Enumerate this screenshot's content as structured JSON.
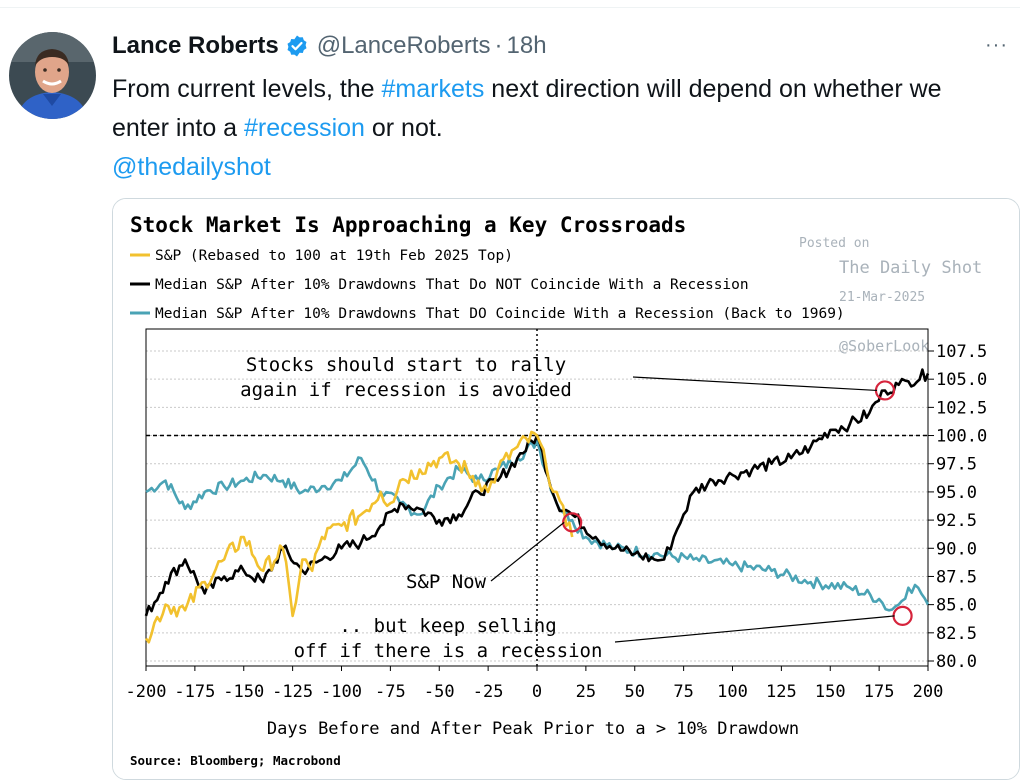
{
  "tweet": {
    "author_name": "Lance Roberts",
    "handle": "@LanceRoberts",
    "separator": "·",
    "time": "18h",
    "more_label": "···",
    "text_part1": "From current levels, the ",
    "hashtag_markets": "#markets",
    "text_part2": " next direction will depend on whether we enter into a ",
    "hashtag_recession": "#recession",
    "text_part3": " or not.",
    "mention": "@thedailyshot"
  },
  "colors": {
    "link": "#1d9bf0",
    "verified": "#1d9bf0",
    "series_sp": "#f2c12e",
    "series_no_recession": "#000000",
    "series_recession": "#4aa3b5",
    "marker": "#d6243c"
  },
  "chart_data": {
    "type": "line",
    "title": "Stock Market Is Approaching a Key Crossroads",
    "xlabel": "Days Before and After Peak Prior to a > 10% Drawdown",
    "ylabel": "",
    "source": "Source: Bloomberg; Macrobond",
    "watermark": [
      "Posted on",
      "The Daily Shot",
      "21-Mar-2025",
      "@SoberLook"
    ],
    "xlim": [
      -200,
      200
    ],
    "ylim": [
      80,
      107.5
    ],
    "x_ticks": [
      -200,
      -175,
      -150,
      -125,
      -100,
      -75,
      -50,
      -25,
      0,
      25,
      50,
      75,
      100,
      125,
      150,
      175,
      200
    ],
    "y_ticks": [
      "107.5",
      "105.0",
      "102.5",
      "100.0",
      "97.5",
      "95.0",
      "92.5",
      "90.0",
      "87.5",
      "85.0",
      "82.5",
      "80.0"
    ],
    "reference_line": 100,
    "grid": true,
    "legend_position": "top-left",
    "series": [
      {
        "name": "S&P (Rebased to 100 at 19th Feb 2025 Top)",
        "x": [
          -200,
          -190,
          -180,
          -170,
          -160,
          -150,
          -140,
          -130,
          -125,
          -120,
          -115,
          -110,
          -100,
          -90,
          -80,
          -75,
          -70,
          -60,
          -50,
          -40,
          -30,
          -25,
          -20,
          -10,
          0,
          5,
          10,
          15,
          18
        ],
        "values": [
          82,
          85,
          84.5,
          87,
          89,
          91,
          88,
          90,
          84,
          89,
          88,
          91,
          92,
          93,
          95,
          94,
          96,
          97,
          98,
          97.5,
          96,
          95,
          97,
          99,
          100,
          97,
          95,
          92,
          91
        ]
      },
      {
        "name": "Median S&P After 10% Drawdowns That Do NOT Coincide With a Recession",
        "x": [
          -200,
          -190,
          -180,
          -170,
          -160,
          -150,
          -140,
          -130,
          -120,
          -110,
          -100,
          -90,
          -80,
          -70,
          -60,
          -50,
          -40,
          -30,
          -20,
          -10,
          0,
          10,
          18,
          30,
          40,
          50,
          60,
          65,
          70,
          75,
          80,
          90,
          100,
          110,
          120,
          130,
          140,
          150,
          160,
          170,
          178,
          185,
          190,
          200
        ],
        "values": [
          84,
          87,
          89,
          86,
          87.5,
          88,
          87,
          90,
          88,
          89,
          90,
          90.5,
          92,
          94,
          93.5,
          92.5,
          93,
          95,
          96,
          98,
          100,
          94,
          93,
          91,
          90,
          89.5,
          89,
          89,
          91,
          93,
          95,
          96,
          96.5,
          97,
          97.5,
          98,
          99,
          100.5,
          101,
          102,
          104,
          104.5,
          104.8,
          105.5
        ]
      },
      {
        "name": "Median S&P After 10% Drawdowns That DO Coincide With a Recession (Back to 1969)",
        "x": [
          -200,
          -190,
          -180,
          -170,
          -160,
          -150,
          -140,
          -130,
          -120,
          -110,
          -100,
          -90,
          -80,
          -70,
          -60,
          -50,
          -40,
          -30,
          -20,
          -10,
          0,
          10,
          18,
          25,
          40,
          60,
          80,
          100,
          120,
          140,
          160,
          175,
          180,
          185,
          190,
          195,
          200
        ],
        "values": [
          95,
          96,
          93.5,
          95,
          95.5,
          96,
          96.5,
          96,
          95,
          95.5,
          96,
          98,
          95,
          94,
          93,
          95.5,
          97,
          96,
          97,
          98,
          99.5,
          94,
          92.5,
          91,
          90,
          89.5,
          89,
          88.5,
          88,
          87,
          86.5,
          85.5,
          84.5,
          85,
          86.5,
          86.5,
          85
        ]
      }
    ],
    "annotations": [
      {
        "text": [
          "Stocks should start to rally",
          "again if recession is avoided"
        ],
        "x": 178,
        "y": 104
      },
      {
        "text": [
          "S&P Now"
        ],
        "x": 18,
        "y": 92.3
      },
      {
        "text": [
          ".. but keep selling",
          "off if there is a recession"
        ],
        "x": 187,
        "y": 84
      }
    ]
  }
}
